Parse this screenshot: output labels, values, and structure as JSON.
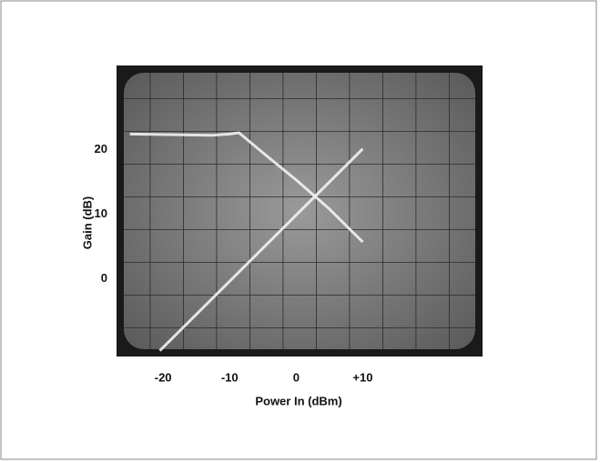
{
  "chart_data": {
    "type": "line",
    "x_label": "Power In (dBm)",
    "y_label": "Gain (dB)",
    "xlim": [
      -27,
      28
    ],
    "ylim": [
      -12,
      33
    ],
    "xticks": [
      -20,
      -10,
      0,
      {
        "value": 10,
        "label": "+10"
      }
    ],
    "yticks": [
      20,
      10,
      0
    ],
    "series": [
      {
        "color": "#f2f2f2",
        "x": [
          -25,
          -18,
          -12.7,
          -10,
          -8.6,
          -5,
          0,
          5,
          10
        ],
        "values": [
          22.4,
          22.3,
          22.2,
          22.4,
          22.6,
          19.5,
          15.3,
          10.8,
          5.7
        ]
      },
      {
        "color": "#f2f2f2",
        "x": [
          -20.5,
          10
        ],
        "values": [
          -11.1,
          20.1
        ]
      }
    ]
  }
}
